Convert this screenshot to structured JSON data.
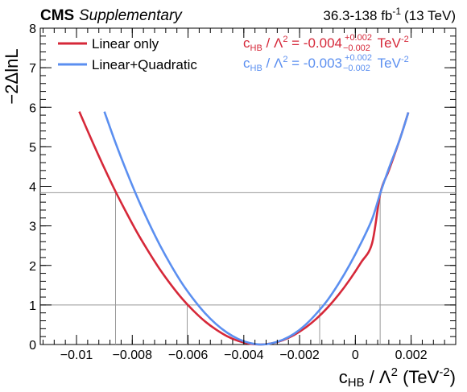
{
  "header": {
    "experiment": "CMS",
    "status": "Supplementary",
    "lumi_value": "36.3-138 fb",
    "lumi_exp": "-1",
    "lumi_energy": "(13 TeV)"
  },
  "axes": {
    "y_label": "−2ΔlnL",
    "x_label_c": "c",
    "x_label_sub": "HB",
    "x_label_mid": " / Λ",
    "x_label_sup": "2",
    "x_label_unit": " (TeV",
    "x_label_unit_exp": "-2",
    "x_label_close": ")"
  },
  "legend": [
    {
      "name": "Linear only",
      "color": "#d62839",
      "res_c": "c",
      "res_sub": "HB",
      "res_mid": " / Λ",
      "res_sup": "2",
      "res_eq": " = -0.004",
      "res_up": "+0.002",
      "res_dn": "−0.002",
      "res_unit": " TeV",
      "res_unit_exp": "-2"
    },
    {
      "name": "Linear+Quadratic",
      "color": "#5b8ff0",
      "res_c": "c",
      "res_sub": "HB",
      "res_mid": " / Λ",
      "res_sup": "2",
      "res_eq": " = -0.003",
      "res_up": "+0.002",
      "res_dn": "−0.002",
      "res_unit": " TeV",
      "res_unit_exp": "-2"
    }
  ],
  "chart_data": {
    "type": "line",
    "xlim": [
      -0.0113,
      0.0036
    ],
    "ylim": [
      0,
      8
    ],
    "x_ticks": [
      -0.01,
      -0.008,
      -0.006,
      -0.004,
      -0.002,
      0,
      0.002
    ],
    "x_tick_labels": [
      "−0.01",
      "−0.008",
      "−0.006",
      "−0.004",
      "−0.002",
      "0",
      "0.002"
    ],
    "y_ticks": [
      0,
      1,
      2,
      3,
      4,
      5,
      6,
      7,
      8
    ],
    "y_tick_labels": [
      "0",
      "1",
      "2",
      "3",
      "4",
      "5",
      "6",
      "7",
      "8"
    ],
    "reference_lines_y": [
      1,
      3.84
    ],
    "reference_lines_x": [
      {
        "x": -0.0086,
        "y": 3.84
      },
      {
        "x": -0.00603,
        "y": 1
      },
      {
        "x": -0.00128,
        "y": 1
      },
      {
        "x": 0.00089,
        "y": 3.84
      }
    ],
    "series": [
      {
        "name": "Linear only",
        "color": "#d62839",
        "x": [
          -0.0099,
          -0.0094,
          -0.009,
          -0.0086,
          -0.0082,
          -0.0078,
          -0.0074,
          -0.007,
          -0.0066,
          -0.0062,
          -0.0058,
          -0.0054,
          -0.005,
          -0.0046,
          -0.0042,
          -0.0038,
          -0.0034,
          -0.003,
          -0.0026,
          -0.0022,
          -0.0018,
          -0.0014,
          -0.001,
          -0.0006,
          -0.0002,
          0.0002,
          0.0006,
          0.0009,
          0.0012,
          0.0016,
          0.0019
        ],
        "y": [
          5.89,
          5.08,
          4.46,
          3.87,
          3.32,
          2.8,
          2.33,
          1.89,
          1.5,
          1.15,
          0.85,
          0.59,
          0.38,
          0.21,
          0.09,
          0.02,
          0.0,
          0.03,
          0.11,
          0.24,
          0.42,
          0.65,
          0.93,
          1.26,
          1.64,
          2.07,
          2.56,
          3.84,
          4.4,
          5.2,
          5.87
        ]
      },
      {
        "name": "Linear+Quadratic",
        "color": "#5b8ff0",
        "x": [
          -0.009,
          -0.0086,
          -0.0082,
          -0.0078,
          -0.0074,
          -0.007,
          -0.0066,
          -0.0062,
          -0.0058,
          -0.0054,
          -0.005,
          -0.0046,
          -0.0042,
          -0.0038,
          -0.0034,
          -0.003,
          -0.0026,
          -0.0022,
          -0.0018,
          -0.0014,
          -0.001,
          -0.0006,
          -0.0002,
          0.0002,
          0.0006,
          0.0009,
          0.0012,
          0.0016,
          0.0019
        ],
        "y": [
          5.89,
          5.1,
          4.37,
          3.69,
          3.07,
          2.5,
          1.99,
          1.53,
          1.14,
          0.8,
          0.52,
          0.3,
          0.14,
          0.04,
          0.0,
          0.03,
          0.12,
          0.27,
          0.49,
          0.78,
          1.12,
          1.54,
          2.02,
          2.56,
          3.17,
          3.84,
          4.45,
          5.2,
          5.87
        ]
      }
    ]
  }
}
